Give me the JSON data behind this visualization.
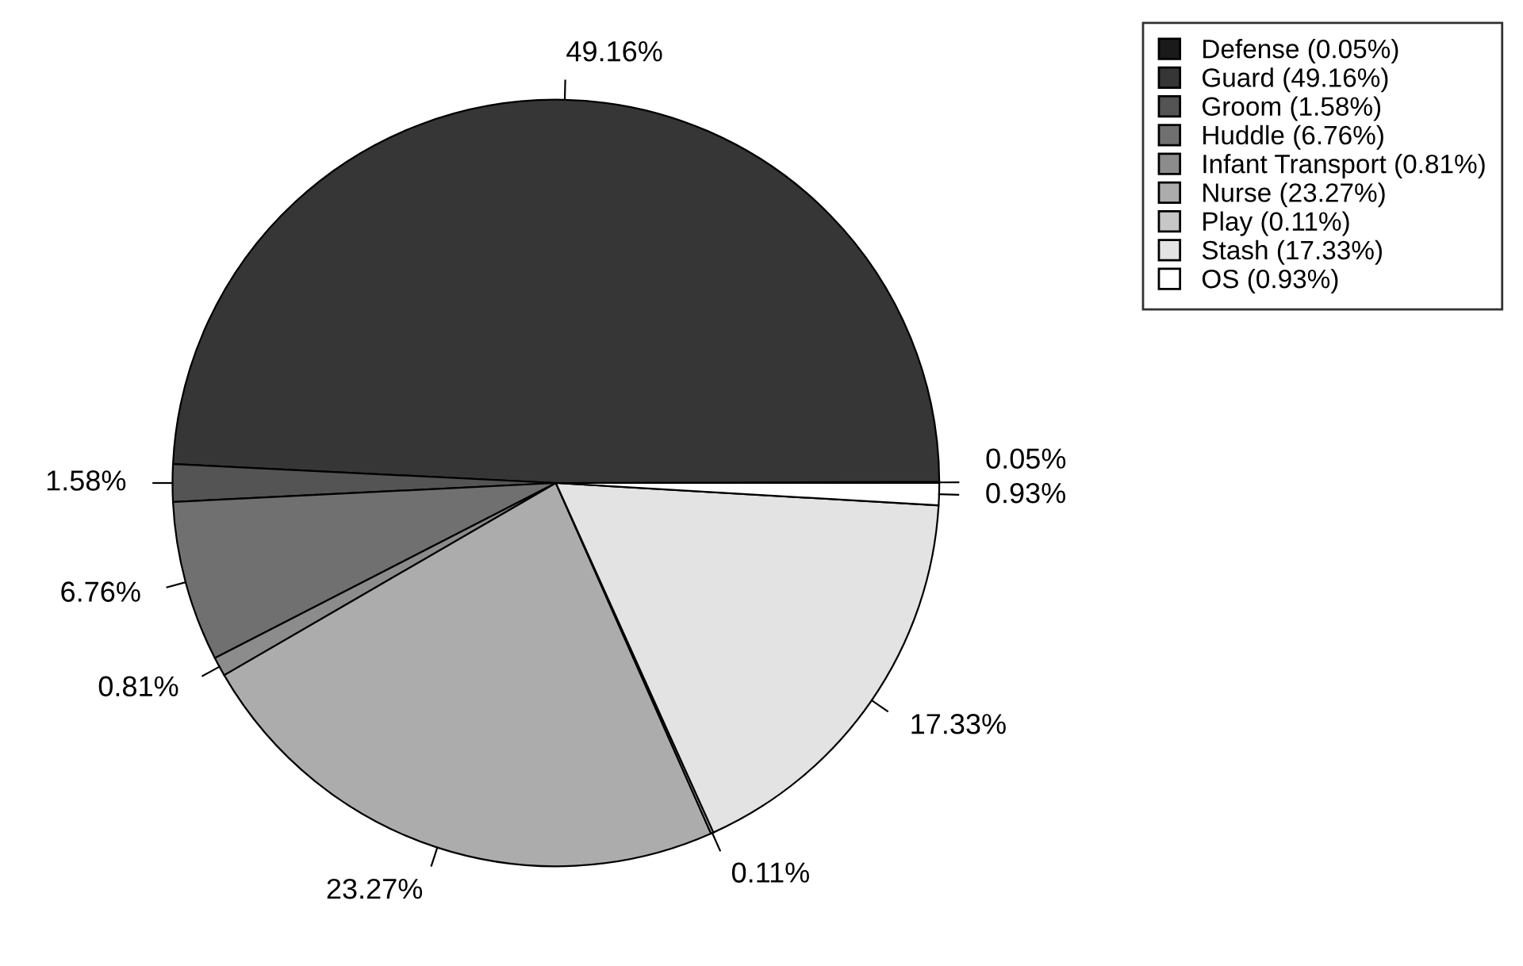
{
  "chart_data": {
    "type": "pie",
    "categories": [
      "Defense (0.05%)",
      "Guard (49.16%)",
      "Groom (1.58%)",
      "Huddle (6.76%)",
      "Infant Transport (0.81%)",
      "Nurse (23.27%)",
      "Play (0.11%)",
      "Stash (17.33%)",
      "OS (0.93%)"
    ],
    "values": [
      0.05,
      49.16,
      1.58,
      6.76,
      0.81,
      23.27,
      0.11,
      17.33,
      0.93
    ],
    "value_labels": [
      "0.05%",
      "49.16%",
      "1.58%",
      "6.76%",
      "0.81%",
      "23.27%",
      "0.11%",
      "17.33%",
      "0.93%"
    ],
    "colors": [
      "#1a1a1a",
      "#363636",
      "#545454",
      "#707070",
      "#8c8c8c",
      "#acacac",
      "#c7c7c7",
      "#e3e3e3",
      "#ffffff"
    ],
    "legend": "top right"
  }
}
